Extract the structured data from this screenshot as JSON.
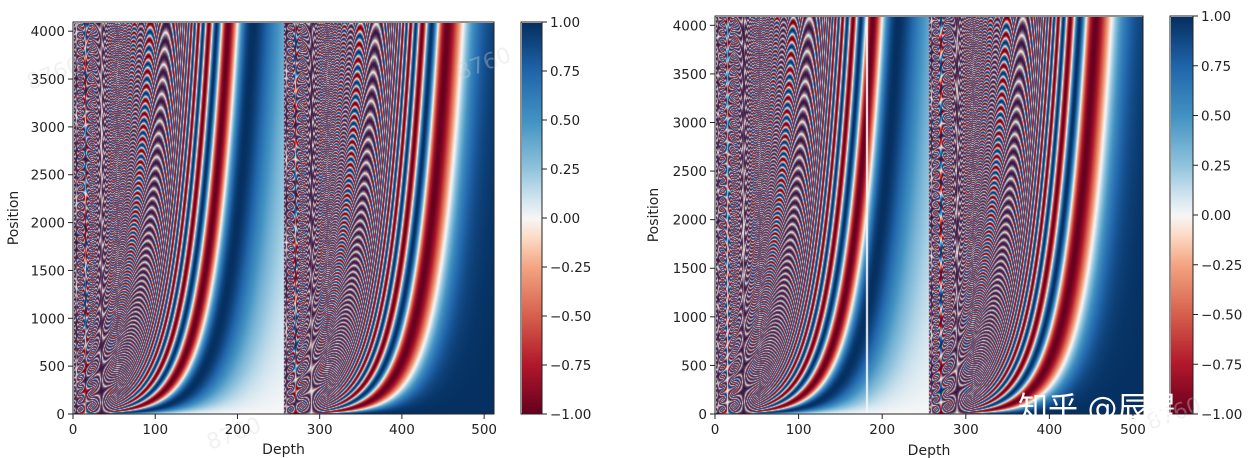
{
  "chart_data": [
    {
      "type": "heatmap",
      "title": "",
      "xlabel": "Depth",
      "ylabel": "Position",
      "xlim": [
        0,
        512
      ],
      "ylim": [
        0,
        4096
      ],
      "x_ticks": [
        "0",
        "100",
        "200",
        "300",
        "400",
        "500"
      ],
      "y_ticks": [
        "0",
        "500",
        "1000",
        "1500",
        "2000",
        "2500",
        "3000",
        "3500",
        "4000"
      ],
      "colormap": "RdBu",
      "color_range": [
        -1.0,
        1.0
      ],
      "colorbar_ticks": [
        "1.00",
        "0.75",
        "0.50",
        "0.25",
        "0.00",
        "−0.25",
        "−0.50",
        "−0.75",
        "−1.00"
      ],
      "d_model": 512,
      "max_position": 4096,
      "layout": "sin in depth 0-255, cos in depth 256-511",
      "interruption": null
    },
    {
      "type": "heatmap",
      "title": "",
      "xlabel": "Depth",
      "ylabel": "Position",
      "xlim": [
        0,
        512
      ],
      "ylim": [
        0,
        4096
      ],
      "x_ticks": [
        "0",
        "100",
        "200",
        "300",
        "400",
        "500"
      ],
      "y_ticks": [
        "0",
        "500",
        "1000",
        "1500",
        "2000",
        "2500",
        "3000",
        "3500",
        "4000"
      ],
      "colormap": "RdBu",
      "color_range": [
        -1.0,
        1.0
      ],
      "colorbar_ticks": [
        "1.00",
        "0.75",
        "0.50",
        "0.25",
        "0.00",
        "−0.25",
        "−0.50",
        "−0.75",
        "−1.00"
      ],
      "d_model": 512,
      "max_position": 4096,
      "layout": "sin in depth 0-255, cos in depth 256-511",
      "interruption": {
        "depth": 181,
        "style": "thin white vertical line"
      }
    }
  ],
  "watermark": {
    "text": "知乎 @辰星",
    "faint": "8760"
  },
  "colors": {
    "low": "#67001f",
    "mid": "#f7f7f7",
    "high": "#053061"
  }
}
